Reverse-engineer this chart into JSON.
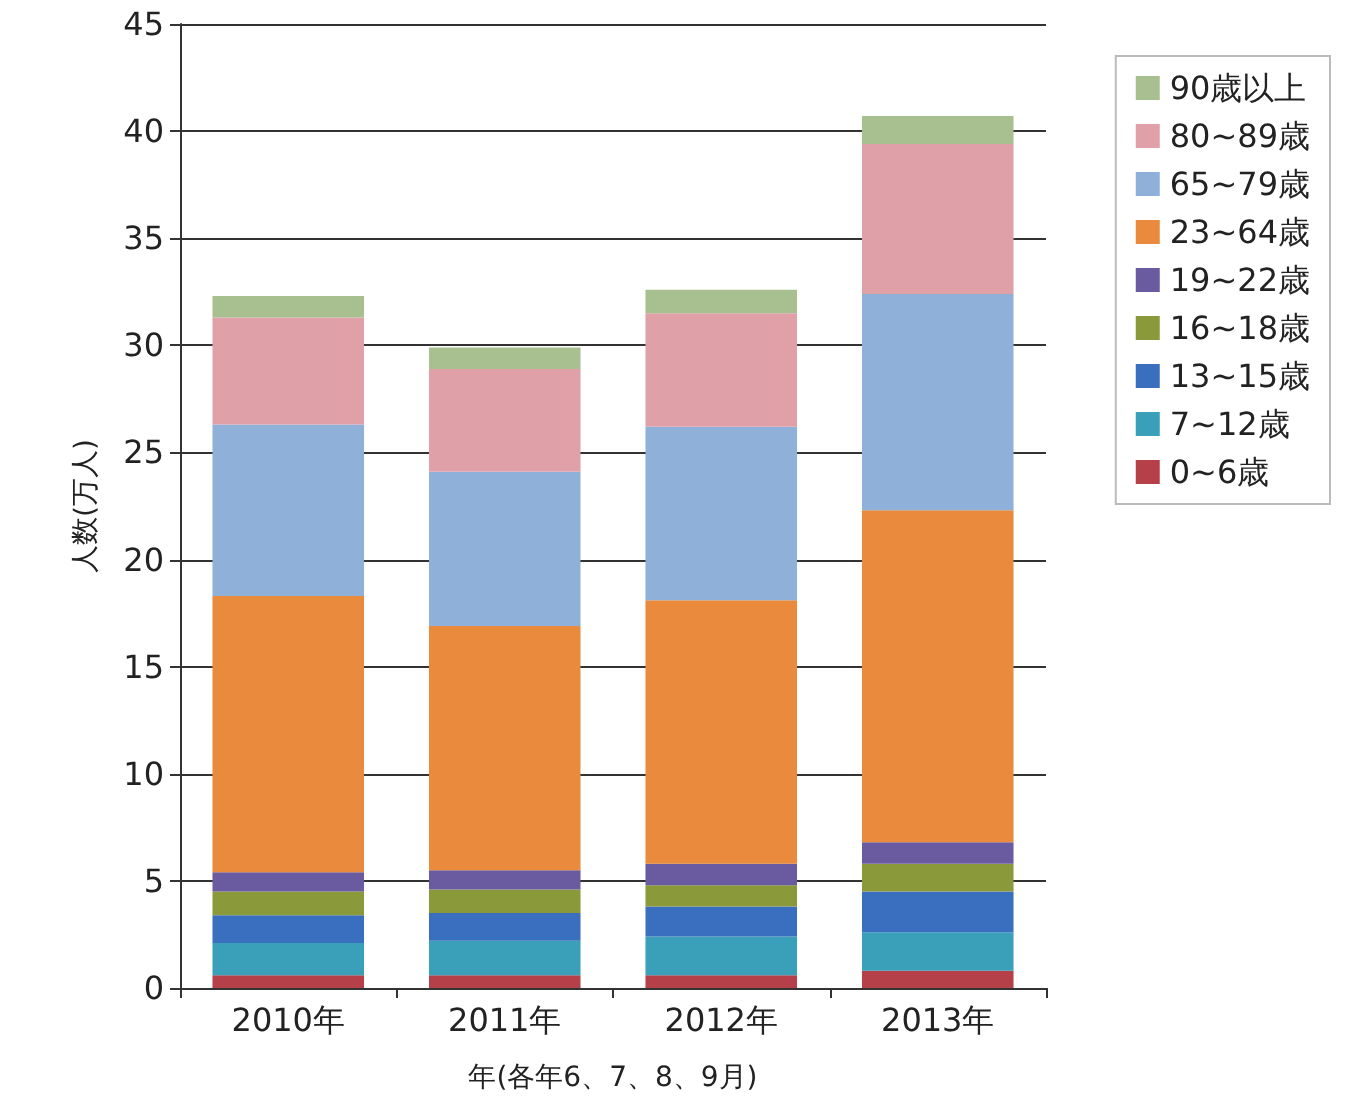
{
  "chart_data": {
    "type": "bar",
    "stacked": true,
    "xlabel": "年(各年6、7、8、9月)",
    "ylabel": "人数(万人)",
    "categories": [
      "2010年",
      "2011年",
      "2012年",
      "2013年"
    ],
    "series": [
      {
        "name": "0~6歳",
        "color": "#b5404a",
        "values": [
          0.6,
          0.6,
          0.6,
          0.8
        ]
      },
      {
        "name": "7~12歳",
        "color": "#3a9fb8",
        "values": [
          1.5,
          1.6,
          1.8,
          1.8
        ]
      },
      {
        "name": "13~15歳",
        "color": "#3a6fbf",
        "values": [
          1.3,
          1.3,
          1.4,
          1.9
        ]
      },
      {
        "name": "16~18歳",
        "color": "#8a9a3a",
        "values": [
          1.1,
          1.1,
          1.0,
          1.3
        ]
      },
      {
        "name": "19~22歳",
        "color": "#6a5aa0",
        "values": [
          0.9,
          0.9,
          1.0,
          1.0
        ]
      },
      {
        "name": "23~64歳",
        "color": "#e98a3c",
        "values": [
          12.9,
          11.4,
          12.3,
          15.5
        ]
      },
      {
        "name": "65~79歳",
        "color": "#8fb0d8",
        "values": [
          8.0,
          7.2,
          8.1,
          10.1
        ]
      },
      {
        "name": "80~89歳",
        "color": "#e0a0a8",
        "values": [
          5.0,
          4.8,
          5.3,
          7.0
        ]
      },
      {
        "name": "90歳以上",
        "color": "#a8c090",
        "values": [
          1.0,
          1.0,
          1.1,
          1.3
        ]
      }
    ],
    "ylim": [
      0,
      45
    ],
    "yticks": [
      0,
      5,
      10,
      15,
      20,
      25,
      30,
      35,
      40,
      45
    ],
    "grid": "y",
    "legend": "top right"
  }
}
